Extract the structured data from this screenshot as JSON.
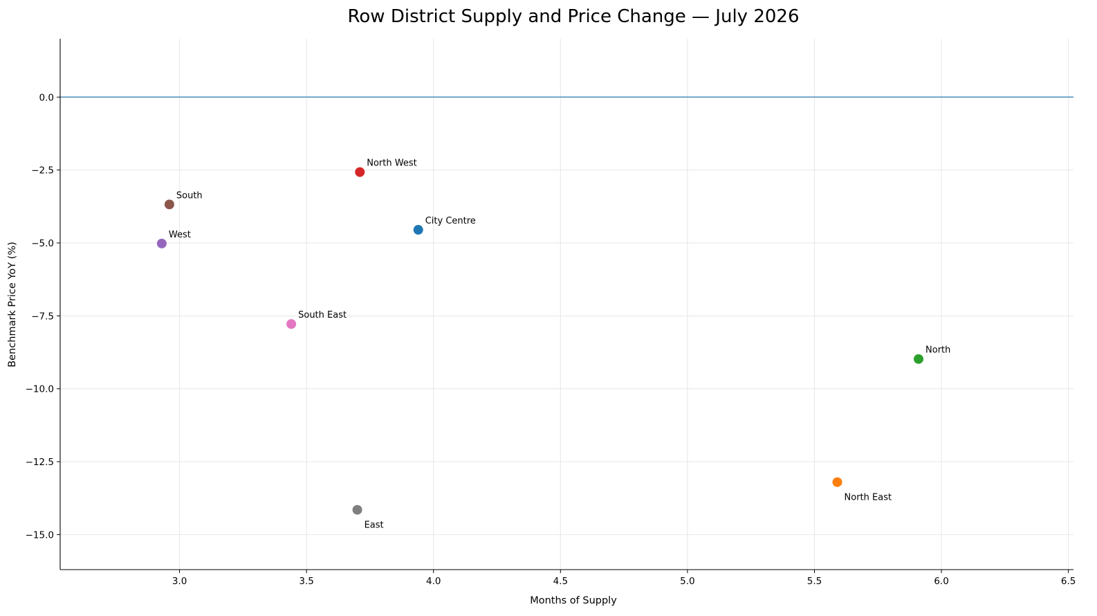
{
  "chart_data": {
    "type": "scatter",
    "title": "Row District Supply and Price Change — July 2026",
    "xlabel": "Months of Supply",
    "ylabel": "Benchmark Price YoY (%)",
    "xlim": [
      2.53,
      6.52
    ],
    "ylim": [
      -16.2,
      2.0
    ],
    "x_ticks": [
      3.0,
      3.5,
      4.0,
      4.5,
      5.0,
      5.5,
      6.0,
      6.5
    ],
    "x_tick_labels": [
      "3.0",
      "3.5",
      "4.0",
      "4.5",
      "5.0",
      "5.5",
      "6.0",
      "6.5"
    ],
    "y_ticks": [
      0.0,
      -2.5,
      -5.0,
      -7.5,
      -10.0,
      -12.5,
      -15.0
    ],
    "y_tick_labels": [
      "0.0",
      "−2.5",
      "−5.0",
      "−7.5",
      "−10.0",
      "−12.5",
      "−15.0"
    ],
    "grid": true,
    "reference_line": {
      "y": 0.0,
      "color": "#4c8bb8"
    },
    "points": [
      {
        "label": "City Centre",
        "x": 3.94,
        "y": -4.55,
        "color": "#1f77b4",
        "label_position": "above-right"
      },
      {
        "label": "North East",
        "x": 5.59,
        "y": -13.2,
        "color": "#ff7f0e",
        "label_position": "below-right"
      },
      {
        "label": "North",
        "x": 5.91,
        "y": -8.98,
        "color": "#2ca02c",
        "label_position": "above-right"
      },
      {
        "label": "North West",
        "x": 3.71,
        "y": -2.57,
        "color": "#d62728",
        "label_position": "above-right"
      },
      {
        "label": "West",
        "x": 2.93,
        "y": -5.02,
        "color": "#9467bd",
        "label_position": "above-right"
      },
      {
        "label": "South",
        "x": 2.96,
        "y": -3.68,
        "color": "#8c564b",
        "label_position": "above-right"
      },
      {
        "label": "South East",
        "x": 3.44,
        "y": -7.78,
        "color": "#e377c2",
        "label_position": "above-right"
      },
      {
        "label": "East",
        "x": 3.7,
        "y": -14.15,
        "color": "#7f7f7f",
        "label_position": "below-right"
      }
    ]
  }
}
